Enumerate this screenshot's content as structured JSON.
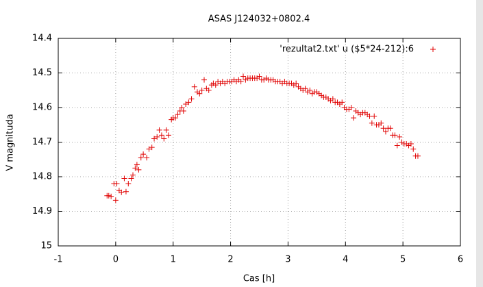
{
  "chart_data": {
    "type": "scatter",
    "title": "ASAS J124032+0802.4",
    "x_label": "Cas [h]",
    "y_label": "V magnituda",
    "xlim": [
      -1,
      6
    ],
    "xticks": [
      -1,
      0,
      1,
      2,
      3,
      4,
      5,
      6
    ],
    "ylim": [
      15,
      14.4
    ],
    "yticks": [
      14.4,
      14.5,
      14.6,
      14.7,
      14.8,
      14.9,
      15
    ],
    "grid": true,
    "legend": "top-right",
    "series": [
      {
        "name": "'rezultat2.txt' u ($5*24-212):6",
        "color": "#e00000",
        "x": [
          -0.15,
          -0.12,
          -0.08,
          -0.03,
          0.0,
          0.02,
          0.06,
          0.1,
          0.15,
          0.18,
          0.22,
          0.27,
          0.3,
          0.34,
          0.37,
          0.4,
          0.44,
          0.48,
          0.54,
          0.58,
          0.63,
          0.67,
          0.72,
          0.76,
          0.8,
          0.84,
          0.88,
          0.92,
          0.97,
          1.0,
          1.04,
          1.08,
          1.12,
          1.15,
          1.18,
          1.22,
          1.27,
          1.32,
          1.37,
          1.42,
          1.46,
          1.5,
          1.54,
          1.58,
          1.62,
          1.67,
          1.7,
          1.74,
          1.78,
          1.82,
          1.86,
          1.9,
          1.94,
          1.98,
          2.02,
          2.06,
          2.1,
          2.14,
          2.18,
          2.22,
          2.26,
          2.3,
          2.34,
          2.38,
          2.42,
          2.46,
          2.5,
          2.54,
          2.58,
          2.62,
          2.66,
          2.7,
          2.74,
          2.78,
          2.82,
          2.86,
          2.9,
          2.94,
          2.98,
          3.02,
          3.06,
          3.1,
          3.14,
          3.18,
          3.22,
          3.26,
          3.3,
          3.34,
          3.38,
          3.42,
          3.46,
          3.5,
          3.54,
          3.58,
          3.62,
          3.66,
          3.7,
          3.74,
          3.78,
          3.82,
          3.86,
          3.9,
          3.94,
          3.98,
          4.02,
          4.06,
          4.1,
          4.14,
          4.18,
          4.22,
          4.26,
          4.3,
          4.34,
          4.38,
          4.42,
          4.46,
          4.5,
          4.54,
          4.58,
          4.62,
          4.66,
          4.7,
          4.74,
          4.78,
          4.82,
          4.86,
          4.9,
          4.94,
          4.98,
          5.02,
          5.06,
          5.1,
          5.14,
          5.18,
          5.22,
          5.26
        ],
        "values": [
          14.855,
          14.855,
          14.857,
          14.82,
          14.868,
          14.82,
          14.84,
          14.845,
          14.805,
          14.843,
          14.82,
          14.805,
          14.795,
          14.775,
          14.765,
          14.78,
          14.745,
          14.735,
          14.745,
          14.72,
          14.715,
          14.69,
          14.685,
          14.665,
          14.68,
          14.69,
          14.665,
          14.68,
          14.635,
          14.63,
          14.63,
          14.62,
          14.61,
          14.6,
          14.61,
          14.59,
          14.585,
          14.575,
          14.54,
          14.555,
          14.56,
          14.55,
          14.52,
          14.545,
          14.55,
          14.535,
          14.53,
          14.535,
          14.525,
          14.53,
          14.525,
          14.53,
          14.525,
          14.525,
          14.525,
          14.52,
          14.525,
          14.52,
          14.525,
          14.51,
          14.52,
          14.515,
          14.515,
          14.515,
          14.515,
          14.515,
          14.51,
          14.52,
          14.52,
          14.515,
          14.52,
          14.52,
          14.52,
          14.525,
          14.525,
          14.525,
          14.53,
          14.525,
          14.53,
          14.53,
          14.53,
          14.535,
          14.53,
          14.54,
          14.545,
          14.55,
          14.545,
          14.555,
          14.55,
          14.56,
          14.555,
          14.555,
          14.56,
          14.565,
          14.57,
          14.57,
          14.575,
          14.58,
          14.575,
          14.585,
          14.585,
          14.59,
          14.585,
          14.6,
          14.605,
          14.605,
          14.6,
          14.63,
          14.61,
          14.615,
          14.62,
          14.615,
          14.615,
          14.62,
          14.625,
          14.645,
          14.625,
          14.65,
          14.65,
          14.645,
          14.66,
          14.67,
          14.66,
          14.66,
          14.68,
          14.68,
          14.71,
          14.685,
          14.7,
          14.705,
          14.705,
          14.71,
          14.705,
          14.72,
          14.74,
          14.74
        ]
      }
    ]
  }
}
